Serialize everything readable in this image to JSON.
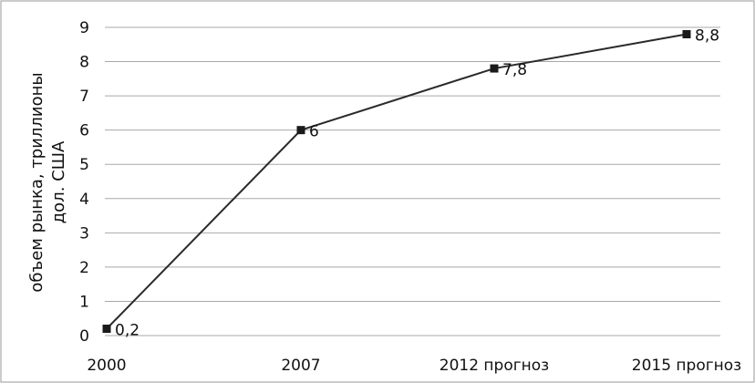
{
  "chart_data": {
    "type": "line",
    "categories": [
      "2000",
      "2007",
      "2012 прогноз",
      "2015 прогноз"
    ],
    "series": [
      {
        "values": [
          0.2,
          6,
          7.8,
          8.8
        ]
      }
    ],
    "data_labels": [
      "0,2",
      "6",
      "7,8",
      "8,8"
    ],
    "ylabel_lines": [
      "объем рынка, триллионы",
      "дол. США"
    ],
    "ylim": [
      0,
      9
    ],
    "yticks": [
      "0",
      "1",
      "2",
      "3",
      "4",
      "5",
      "6",
      "7",
      "8",
      "9"
    ],
    "grid": true,
    "legend": "none",
    "colors": {
      "line": "#2a2a2a",
      "marker": "#1a1a1a",
      "grid": "#a8a8a8",
      "frame": "#9a9a9a"
    }
  }
}
